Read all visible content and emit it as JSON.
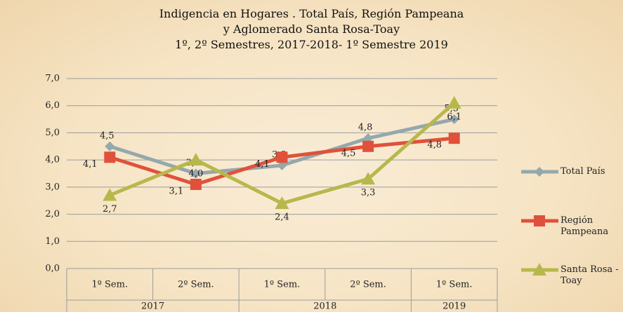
{
  "chart_data": {
    "type": "line",
    "title": [
      "Indigencia en Hogares . Total País, Región Pampeana",
      "y Aglomerado Santa Rosa-Toay",
      "1º, 2º Semestres, 2017-2018- 1º Semestre 2019"
    ],
    "groups": [
      {
        "label": "2017",
        "categories": [
          "1º Sem.",
          "2º Sem."
        ]
      },
      {
        "label": "2018",
        "categories": [
          "1º Sem.",
          "2º Sem."
        ]
      },
      {
        "label": "2019",
        "categories": [
          "1º Sem."
        ]
      }
    ],
    "series": [
      {
        "name": "Total País",
        "color": "#94a8ad",
        "marker": "diamond",
        "values": [
          4.5,
          3.5,
          3.8,
          4.8,
          5.5
        ],
        "value_labels": [
          "4,5",
          "3,5",
          "3,8",
          "4,8",
          "5,5"
        ]
      },
      {
        "name": "Región Pampeana",
        "color": "#e0513b",
        "marker": "square",
        "values": [
          4.1,
          3.1,
          4.1,
          4.5,
          4.8
        ],
        "value_labels": [
          "4,1",
          "3,1",
          "4,1",
          "4,5",
          "4,8"
        ]
      },
      {
        "name": "Santa Rosa - Toay",
        "color": "#b7b84c",
        "marker": "triangle",
        "values": [
          2.7,
          4.0,
          2.4,
          3.3,
          6.1
        ],
        "value_labels": [
          "2,7",
          "4,0",
          "2,4",
          "3,3",
          "6,1"
        ]
      }
    ],
    "ylim": [
      0,
      7
    ],
    "yticks": [
      {
        "value": 0,
        "label": "0,0"
      },
      {
        "value": 1,
        "label": "1,0"
      },
      {
        "value": 2,
        "label": "2,0"
      },
      {
        "value": 3,
        "label": "3,0"
      },
      {
        "value": 4,
        "label": "4,0"
      },
      {
        "value": 5,
        "label": "5,0"
      },
      {
        "value": 6,
        "label": "6,0"
      },
      {
        "value": 7,
        "label": "7,0"
      }
    ],
    "grid": true,
    "legend": "right"
  }
}
